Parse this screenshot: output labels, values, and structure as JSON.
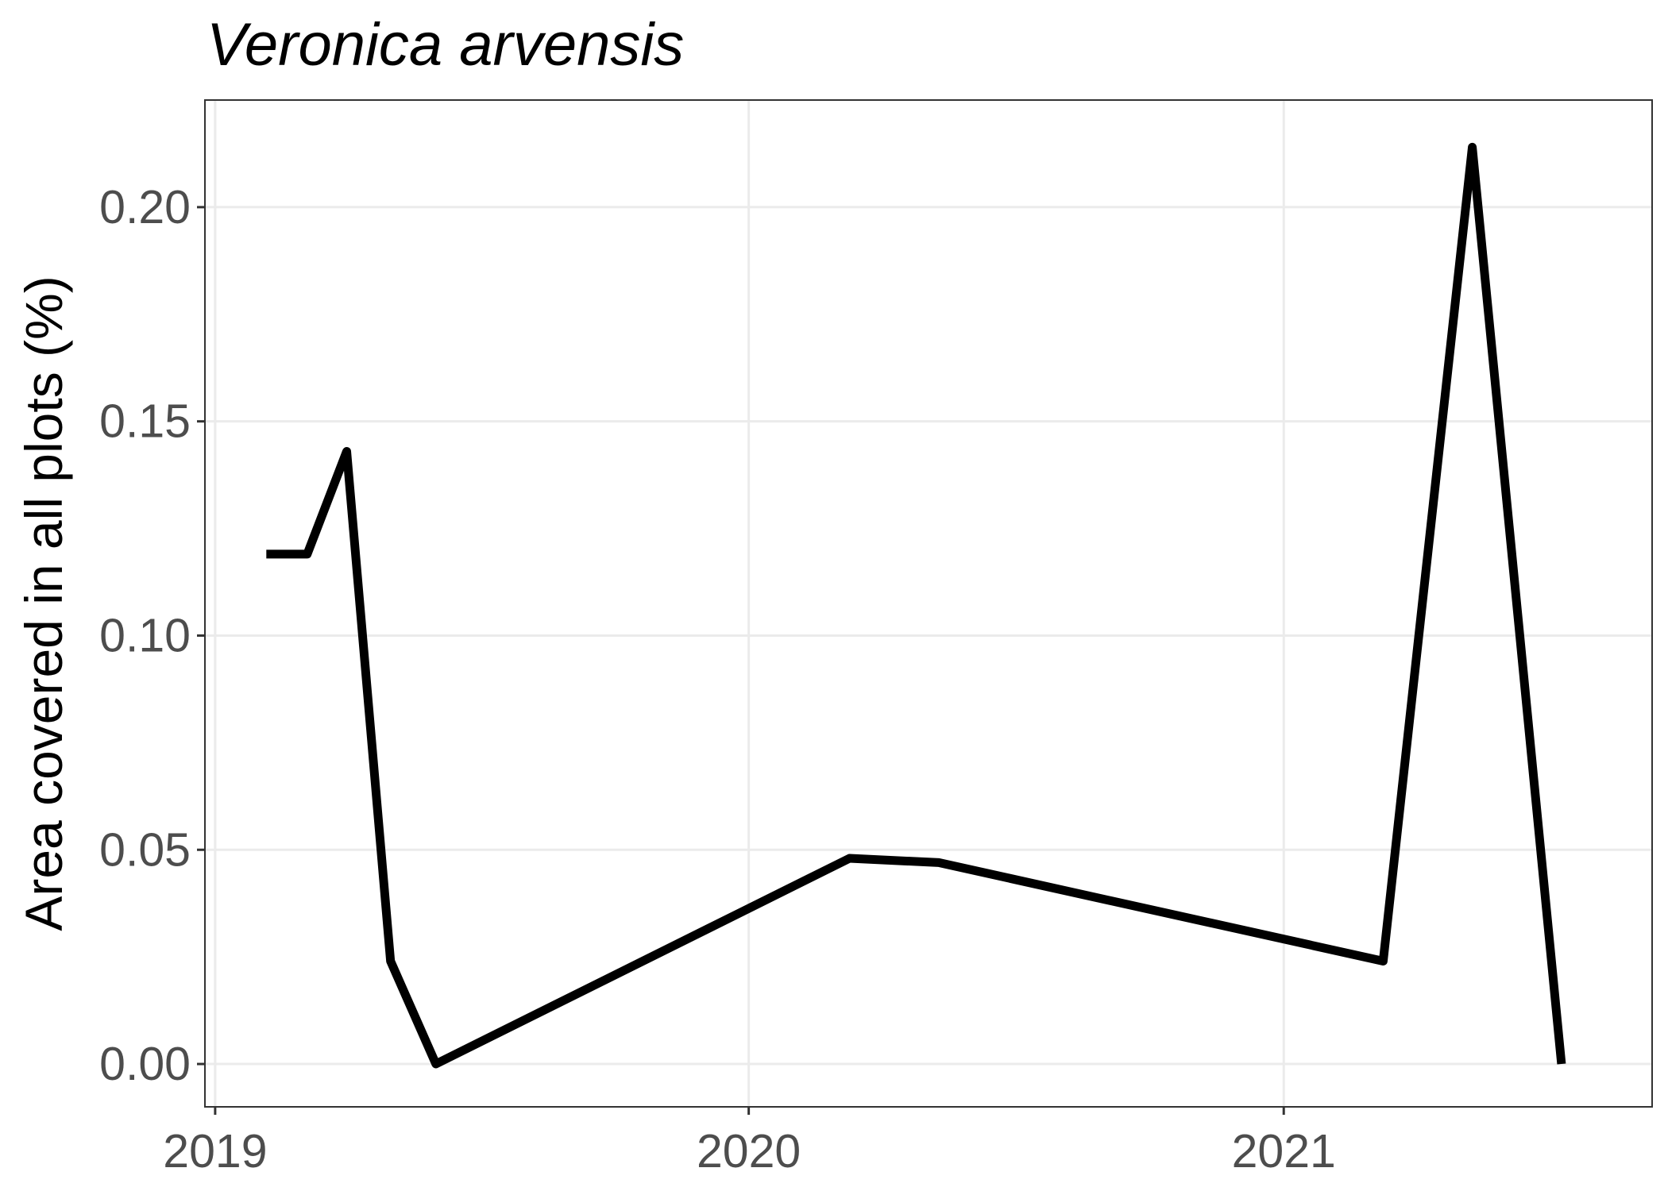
{
  "chart_data": {
    "type": "line",
    "title": "Veronica arvensis",
    "xlabel": "",
    "ylabel": "Area covered in all plots (%)",
    "x_ticks": [
      "2019",
      "2020",
      "2021"
    ],
    "y_ticks": [
      "0.00",
      "0.05",
      "0.10",
      "0.15",
      "0.20"
    ],
    "xlim": [
      "2018-12-25",
      "2021-09-10"
    ],
    "ylim": [
      -0.01,
      0.225
    ],
    "grid": true,
    "line_color": "#000000",
    "series": [
      {
        "points": [
          {
            "x": "2019-02-05",
            "y": 0.119
          },
          {
            "x": "2019-03-05",
            "y": 0.119
          },
          {
            "x": "2019-04-01",
            "y": 0.143
          },
          {
            "x": "2019-05-01",
            "y": 0.024
          },
          {
            "x": "2019-06-01",
            "y": 0.0
          },
          {
            "x": "2020-03-10",
            "y": 0.048
          },
          {
            "x": "2020-05-10",
            "y": 0.047
          },
          {
            "x": "2021-03-10",
            "y": 0.024
          },
          {
            "x": "2021-05-10",
            "y": 0.214
          },
          {
            "x": "2021-07-10",
            "y": 0.0
          }
        ]
      }
    ]
  }
}
